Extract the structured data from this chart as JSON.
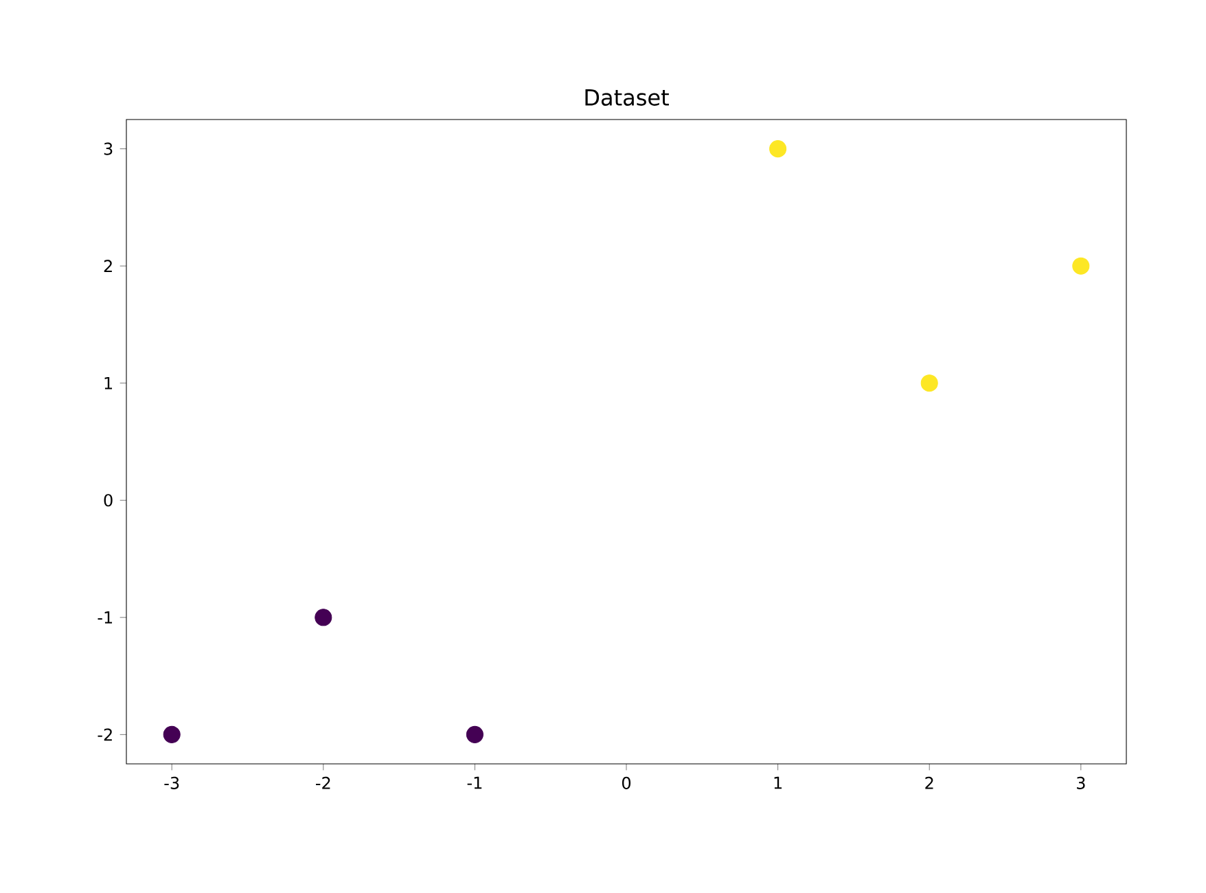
{
  "chart_data": {
    "type": "scatter",
    "title": "Dataset",
    "series": [
      {
        "color": "#440154",
        "x": [
          -3,
          -2,
          -1
        ],
        "values": [
          -2,
          -1,
          -2
        ]
      },
      {
        "color": "#fde725",
        "x": [
          1,
          2,
          3
        ],
        "values": [
          3,
          1,
          2
        ]
      }
    ],
    "xlim": [
      -3.3,
      3.3
    ],
    "ylim": [
      -2.25,
      3.25
    ],
    "xticks": [
      -3,
      -2,
      -1,
      0,
      1,
      2,
      3
    ],
    "yticks": [
      -2,
      -1,
      0,
      1,
      2,
      3
    ],
    "grid": false
  }
}
